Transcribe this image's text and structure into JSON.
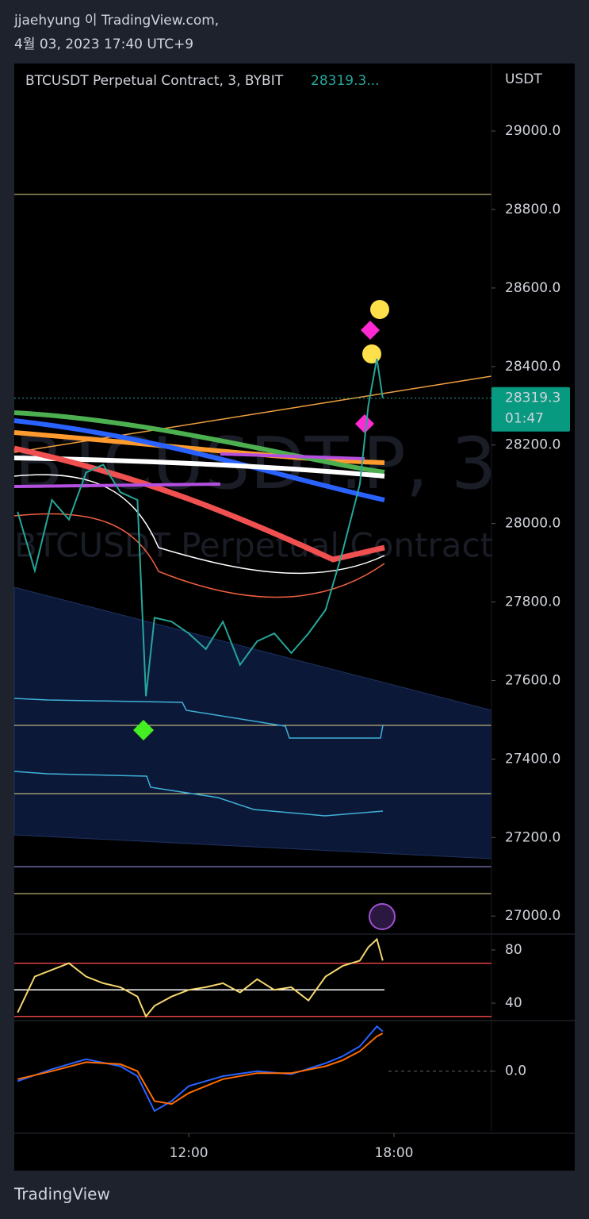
{
  "header": {
    "line1": "jjaehyung 이 TradingView.com,",
    "line2": "4월 03, 2023 17:40 UTC+9"
  },
  "footer": {
    "brand": "TradingView"
  },
  "chart_data": [
    {
      "type": "line",
      "title": "BTCUSDT Perpetual Contract, 3, BYBIT",
      "price_text": "28319.3...",
      "unit": "USDT",
      "watermark": "BTCUSDT.P, 3",
      "watermark_sub": "BTCUSDT Perpetual Contract",
      "last_price": 28319.3,
      "countdown": "01:47",
      "color": "#26a69a",
      "x": [
        7.0,
        7.5,
        8.0,
        8.5,
        9.0,
        9.5,
        10.0,
        10.5,
        10.75,
        11.0,
        11.5,
        12.0,
        12.5,
        13.0,
        13.5,
        14.0,
        14.5,
        15.0,
        15.5,
        16.0,
        16.5,
        17.0,
        17.25,
        17.5,
        17.67
      ],
      "values": [
        28030,
        27880,
        28060,
        28010,
        28130,
        28150,
        28080,
        28060,
        27560,
        27760,
        27750,
        27720,
        27680,
        27750,
        27640,
        27700,
        27720,
        27670,
        27720,
        27780,
        27930,
        28100,
        28300,
        28420,
        28319.3
      ],
      "xlim": [
        6.9,
        20.85
      ],
      "ylim": [
        26958,
        29172
      ],
      "yticks": [
        {
          "value": 27000,
          "label": "27000.0"
        },
        {
          "value": 27200,
          "label": "27200.0"
        },
        {
          "value": 27400,
          "label": "27400.0"
        },
        {
          "value": 27600,
          "label": "27600.0"
        },
        {
          "value": 27800,
          "label": "27800.0"
        },
        {
          "value": 28000,
          "label": "28000.0"
        },
        {
          "value": 28200,
          "label": "28200.0"
        },
        {
          "value": 28400,
          "label": "28400.0"
        },
        {
          "value": 28600,
          "label": "28600.0"
        },
        {
          "value": 28800,
          "label": "28800.0"
        },
        {
          "value": 29000,
          "label": "29000.0"
        }
      ]
    },
    {
      "type": "line",
      "color": "#f5d76e",
      "x": [
        7.0,
        7.5,
        8.0,
        8.5,
        9.0,
        9.5,
        10.0,
        10.5,
        10.75,
        11.0,
        11.5,
        12.0,
        12.5,
        13.0,
        13.5,
        14.0,
        14.5,
        15.0,
        15.5,
        16.0,
        16.5,
        17.0,
        17.25,
        17.5,
        17.67
      ],
      "values": [
        33,
        60,
        65,
        70,
        60,
        55,
        52,
        45,
        30,
        38,
        45,
        50,
        52,
        55,
        48,
        58,
        50,
        52,
        42,
        60,
        68,
        72,
        82,
        88,
        72
      ],
      "levels": [
        70,
        50,
        30
      ],
      "xlim": [
        6.9,
        20.85
      ],
      "ylim": [
        27.5,
        91.3
      ],
      "yticks": [
        40,
        80
      ]
    },
    {
      "type": "line",
      "x": [
        7.0,
        8.0,
        9.0,
        10.0,
        10.5,
        11.0,
        11.5,
        12.0,
        13.0,
        14.0,
        15.0,
        16.0,
        16.5,
        17.0,
        17.5,
        17.67
      ],
      "series": [
        {
          "color": "#2962ff",
          "values": [
            -10,
            2,
            12,
            5,
            -5,
            -40,
            -30,
            -15,
            -5,
            0,
            -3,
            8,
            15,
            25,
            45,
            40
          ]
        },
        {
          "color": "#ff6d00",
          "values": [
            -8,
            0,
            9,
            7,
            0,
            -30,
            -33,
            -22,
            -8,
            -2,
            -2,
            5,
            11,
            20,
            35,
            38
          ]
        }
      ],
      "xlim": [
        6.9,
        20.85
      ],
      "ylim": [
        -60,
        50
      ],
      "yticks": [
        {
          "value": 0,
          "label": "0.0"
        }
      ],
      "xticks": [
        {
          "value": 12,
          "label": "12:00"
        },
        {
          "value": 18,
          "label": "18:00"
        }
      ]
    }
  ]
}
